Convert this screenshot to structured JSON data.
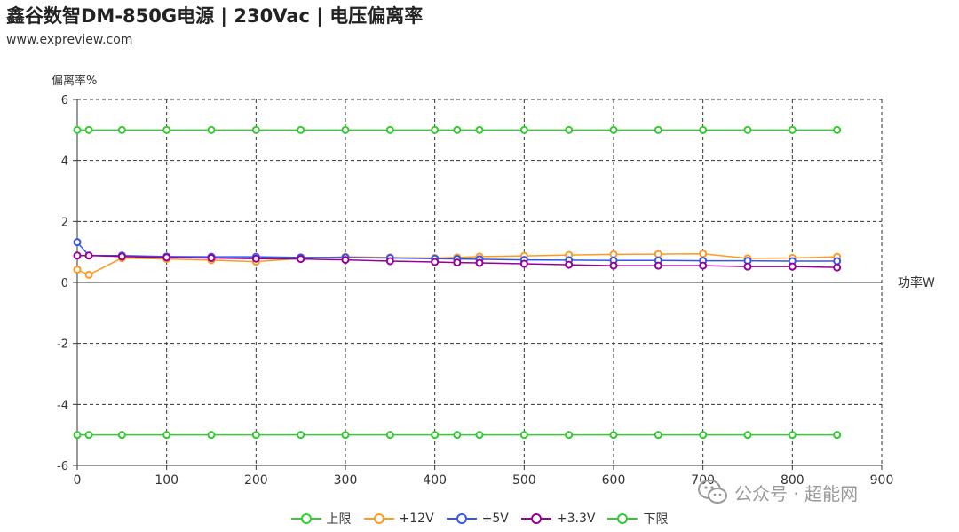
{
  "header": {
    "title": "鑫谷数智DM-850G电源 | 230Vac | 电压偏离率",
    "subtitle": "www.expreview.com"
  },
  "watermark": {
    "text": "公众号 · 超能网",
    "icon": "wechat-icon"
  },
  "chart_data": {
    "type": "line",
    "ylabel": "偏离率%",
    "xlabel": "功率W",
    "xlim": [
      0,
      900
    ],
    "ylim": [
      -6,
      6
    ],
    "x_ticks": [
      0,
      100,
      200,
      300,
      400,
      500,
      600,
      700,
      800,
      900
    ],
    "y_ticks": [
      -6,
      -4,
      -2,
      0,
      2,
      4,
      6
    ],
    "grid": "dashed",
    "legend": "bottom-center",
    "x": [
      0,
      13,
      50,
      100,
      150,
      200,
      250,
      300,
      350,
      400,
      425,
      450,
      500,
      550,
      600,
      650,
      700,
      750,
      800,
      850
    ],
    "series": [
      {
        "name": "上限",
        "color": "#33cc33",
        "values": [
          5,
          5,
          5,
          5,
          5,
          5,
          5,
          5,
          5,
          5,
          5,
          5,
          5,
          5,
          5,
          5,
          5,
          5,
          5,
          5
        ]
      },
      {
        "name": "+12V",
        "color": "#ff9922",
        "values": [
          0.42,
          0.25,
          0.8,
          0.77,
          0.73,
          0.68,
          0.79,
          0.84,
          0.82,
          0.8,
          0.82,
          0.85,
          0.87,
          0.9,
          0.92,
          0.93,
          0.94,
          0.79,
          0.8,
          0.84
        ]
      },
      {
        "name": "+5V",
        "color": "#3355ee",
        "values": [
          1.32,
          0.88,
          0.88,
          0.85,
          0.84,
          0.84,
          0.82,
          0.82,
          0.8,
          0.78,
          0.77,
          0.76,
          0.74,
          0.73,
          0.72,
          0.72,
          0.71,
          0.71,
          0.7,
          0.7
        ]
      },
      {
        "name": "+3.3V",
        "color": "#990099",
        "values": [
          0.88,
          0.88,
          0.85,
          0.82,
          0.8,
          0.78,
          0.77,
          0.74,
          0.7,
          0.67,
          0.65,
          0.64,
          0.61,
          0.58,
          0.55,
          0.55,
          0.55,
          0.52,
          0.52,
          0.49
        ]
      },
      {
        "name": "下限",
        "color": "#33cc33",
        "values": [
          -5,
          -5,
          -5,
          -5,
          -5,
          -5,
          -5,
          -5,
          -5,
          -5,
          -5,
          -5,
          -5,
          -5,
          -5,
          -5,
          -5,
          -5,
          -5,
          -5
        ]
      }
    ]
  }
}
